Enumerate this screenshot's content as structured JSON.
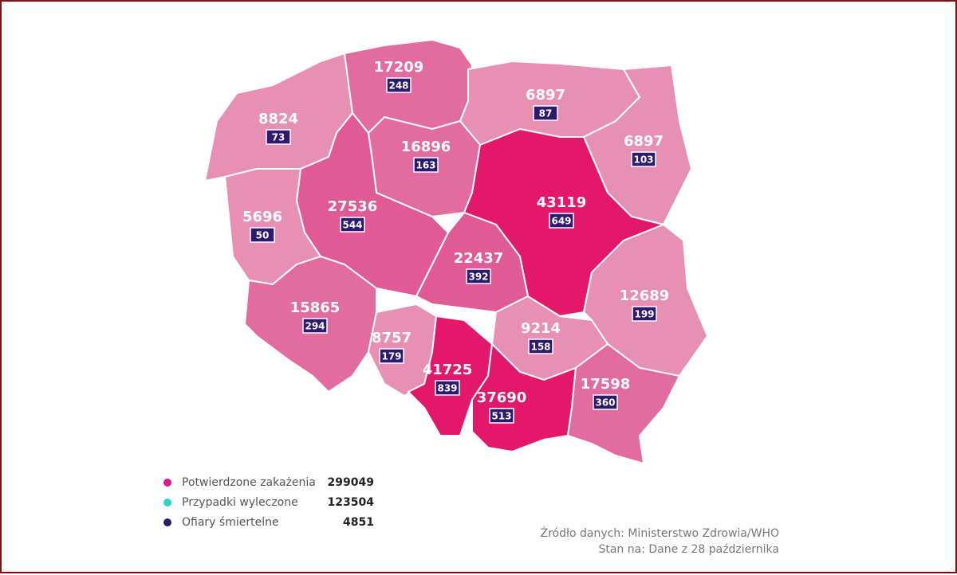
{
  "regions": [
    {
      "cases": 8824,
      "deaths": 73,
      "color": "#e88fb4"
    },
    {
      "cases": 17209,
      "deaths": 248,
      "color": "#e26b9f"
    },
    {
      "cases": 6897,
      "deaths": 87,
      "color": "#e88fb4"
    },
    {
      "cases": 6897,
      "deaths": 103,
      "color": "#e88fb4"
    },
    {
      "cases": 16896,
      "deaths": 163,
      "color": "#e26b9f"
    },
    {
      "cases": 27536,
      "deaths": 544,
      "color": "#e05a95"
    },
    {
      "cases": 5696,
      "deaths": 50,
      "color": "#e88fb4"
    },
    {
      "cases": 43119,
      "deaths": 649,
      "color": "#e3186a"
    },
    {
      "cases": 22437,
      "deaths": 392,
      "color": "#e05a95"
    },
    {
      "cases": 12689,
      "deaths": 199,
      "color": "#e88fb4"
    },
    {
      "cases": 15865,
      "deaths": 294,
      "color": "#e26b9f"
    },
    {
      "cases": 8757,
      "deaths": 179,
      "color": "#e88fb4"
    },
    {
      "cases": 41725,
      "deaths": 839,
      "color": "#e3186a"
    },
    {
      "cases": 9214,
      "deaths": 158,
      "color": "#e88fb4"
    },
    {
      "cases": 37690,
      "deaths": 513,
      "color": "#e3186a"
    },
    {
      "cases": 17598,
      "deaths": 360,
      "color": "#e26b9f"
    }
  ],
  "legend": [
    {
      "label": "Potwierdzone zakażenia",
      "value": 299049,
      "color": "#e3178c"
    },
    {
      "label": "Przypadki wyleczone",
      "value": 123504,
      "color": "#2fd5c8"
    },
    {
      "label": "Ofiary śmiertelne",
      "value": 4851,
      "color": "#2d1a6e"
    }
  ],
  "source": "Źródło danych: Ministerstwo Zdrowia/WHO",
  "date": "Stan na: Dane z 28 października"
}
